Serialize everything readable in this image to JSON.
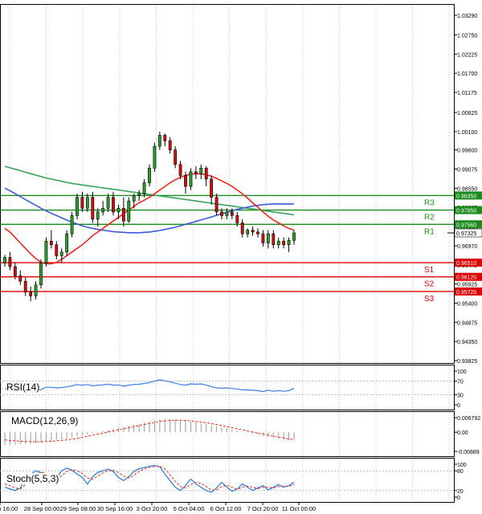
{
  "chart_data": {
    "type": "candlestick",
    "title": "",
    "price_axis_ticks": [
      "1.03290",
      "1.02750",
      "1.02225",
      "1.01700",
      "1.01175",
      "1.00625",
      "1.00100",
      "0.99600",
      "0.99075",
      "0.98550",
      "0.98025",
      "0.97495",
      "0.96970",
      "0.96445",
      "0.95925",
      "0.95400",
      "0.94875",
      "0.94350",
      "0.93825"
    ],
    "price_axis_values": [
      1.0329,
      1.0275,
      1.02225,
      1.017,
      1.01175,
      1.00625,
      1.001,
      0.996,
      0.99075,
      0.9855,
      0.98025,
      0.97495,
      0.9697,
      0.96445,
      0.95925,
      0.954,
      0.94875,
      0.9435,
      0.93825
    ],
    "current_price": "0.97325",
    "current_price_value": 0.97325,
    "levels": [
      {
        "name": "R3",
        "label": "R3",
        "value": 0.9835,
        "label_value": "0.98350",
        "color": "#1a8a1a"
      },
      {
        "name": "R2",
        "label": "R2",
        "value": 0.9795,
        "label_value": "0.97950",
        "color": "#1a8a1a"
      },
      {
        "name": "R1",
        "label": "R1",
        "value": 0.9756,
        "label_value": "0.97560",
        "color": "#1a8a1a"
      },
      {
        "name": "S1",
        "label": "S1",
        "value": 0.9651,
        "label_value": "0.96510",
        "color": "#dd0000"
      },
      {
        "name": "S2",
        "label": "S2",
        "value": 0.9612,
        "label_value": "0.96120",
        "color": "#dd0000"
      },
      {
        "name": "S3",
        "label": "S3",
        "value": 0.9572,
        "label_value": "0.95720",
        "color": "#dd0000"
      }
    ],
    "time_axis_labels": [
      "27 Sep 16:00",
      "28 Sep 00:00",
      "29 Sep 08:00",
      "30 Sep 16:00",
      "3 Oct 20:00",
      "5 Oct 04:00",
      "6 Oct 12:00",
      "7 Oct 20:00",
      "11 Oct 00:00"
    ],
    "candles": [
      [
        0.965,
        0.9672,
        0.964,
        0.9665
      ],
      [
        0.9665,
        0.968,
        0.963,
        0.964
      ],
      [
        0.964,
        0.965,
        0.9605,
        0.9615
      ],
      [
        0.9615,
        0.963,
        0.959,
        0.96
      ],
      [
        0.96,
        0.961,
        0.956,
        0.957
      ],
      [
        0.957,
        0.9585,
        0.9545,
        0.956
      ],
      [
        0.956,
        0.96,
        0.955,
        0.959
      ],
      [
        0.959,
        0.966,
        0.958,
        0.965
      ],
      [
        0.965,
        0.972,
        0.964,
        0.971
      ],
      [
        0.971,
        0.974,
        0.969,
        0.97
      ],
      [
        0.97,
        0.971,
        0.966,
        0.967
      ],
      [
        0.967,
        0.969,
        0.965,
        0.968
      ],
      [
        0.968,
        0.974,
        0.967,
        0.973
      ],
      [
        0.973,
        0.979,
        0.972,
        0.978
      ],
      [
        0.978,
        0.984,
        0.977,
        0.983
      ],
      [
        0.983,
        0.9845,
        0.979,
        0.98
      ],
      [
        0.98,
        0.984,
        0.979,
        0.983
      ],
      [
        0.983,
        0.9845,
        0.976,
        0.977
      ],
      [
        0.977,
        0.98,
        0.975,
        0.979
      ],
      [
        0.979,
        0.982,
        0.978,
        0.98
      ],
      [
        0.98,
        0.984,
        0.979,
        0.983
      ],
      [
        0.983,
        0.9845,
        0.978,
        0.979
      ],
      [
        0.979,
        0.981,
        0.977,
        0.98
      ],
      [
        0.98,
        0.983,
        0.975,
        0.9765
      ],
      [
        0.9765,
        0.983,
        0.976,
        0.982
      ],
      [
        0.982,
        0.984,
        0.98,
        0.9835
      ],
      [
        0.9835,
        0.985,
        0.982,
        0.984
      ],
      [
        0.984,
        0.988,
        0.983,
        0.987
      ],
      [
        0.987,
        0.992,
        0.986,
        0.991
      ],
      [
        0.991,
        0.998,
        0.99,
        0.997
      ],
      [
        0.997,
        1.001,
        0.996,
        1.0
      ],
      [
        1.0,
        1.0005,
        0.997,
        0.9985
      ],
      [
        0.9985,
        0.9995,
        0.995,
        0.996
      ],
      [
        0.996,
        0.997,
        0.991,
        0.992
      ],
      [
        0.992,
        0.993,
        0.988,
        0.989
      ],
      [
        0.989,
        0.99,
        0.984,
        0.986
      ],
      [
        0.986,
        0.991,
        0.985,
        0.99
      ],
      [
        0.99,
        0.9915,
        0.988,
        0.9895
      ],
      [
        0.9895,
        0.992,
        0.988,
        0.991
      ],
      [
        0.991,
        0.9915,
        0.986,
        0.988
      ],
      [
        0.988,
        0.989,
        0.981,
        0.983
      ],
      [
        0.983,
        0.984,
        0.978,
        0.979
      ],
      [
        0.979,
        0.98,
        0.977,
        0.978
      ],
      [
        0.978,
        0.98,
        0.977,
        0.979
      ],
      [
        0.979,
        0.98,
        0.977,
        0.978
      ],
      [
        0.978,
        0.979,
        0.975,
        0.976
      ],
      [
        0.976,
        0.977,
        0.972,
        0.973
      ],
      [
        0.973,
        0.9745,
        0.972,
        0.974
      ],
      [
        0.974,
        0.975,
        0.9725,
        0.9735
      ],
      [
        0.9735,
        0.9745,
        0.972,
        0.973
      ],
      [
        0.973,
        0.974,
        0.9695,
        0.9705
      ],
      [
        0.9705,
        0.974,
        0.969,
        0.973
      ],
      [
        0.973,
        0.974,
        0.969,
        0.97
      ],
      [
        0.97,
        0.972,
        0.969,
        0.971
      ],
      [
        0.971,
        0.972,
        0.969,
        0.97
      ],
      [
        0.97,
        0.972,
        0.968,
        0.9712
      ],
      [
        0.9712,
        0.974,
        0.97,
        0.97325
      ]
    ],
    "ma_red": [
      0.9745,
      0.9735,
      0.972,
      0.9705,
      0.969,
      0.9675,
      0.9662,
      0.9652,
      0.9648,
      0.9648,
      0.9652,
      0.966,
      0.967,
      0.968,
      0.969,
      0.97,
      0.9712,
      0.9725,
      0.9735,
      0.9745,
      0.9755,
      0.9765,
      0.9775,
      0.9785,
      0.9795,
      0.9805,
      0.9815,
      0.9822,
      0.983,
      0.984,
      0.985,
      0.986,
      0.987,
      0.9878,
      0.9885,
      0.989,
      0.9893,
      0.9895,
      0.9894,
      0.9892,
      0.9888,
      0.9882,
      0.9875,
      0.9868,
      0.986,
      0.985,
      0.984,
      0.9828,
      0.9815,
      0.9803,
      0.979,
      0.9778,
      0.9768,
      0.976,
      0.9752,
      0.9745,
      0.974
    ],
    "ma_blue": [
      0.9855,
      0.9848,
      0.984,
      0.9832,
      0.9824,
      0.9816,
      0.9808,
      0.98,
      0.9793,
      0.9786,
      0.978,
      0.9774,
      0.9768,
      0.9762,
      0.9757,
      0.9752,
      0.9748,
      0.9745,
      0.9742,
      0.974,
      0.9738,
      0.9736,
      0.9735,
      0.9734,
      0.9733,
      0.9733,
      0.9733,
      0.9734,
      0.9735,
      0.9737,
      0.9739,
      0.9742,
      0.9745,
      0.9748,
      0.9752,
      0.9756,
      0.976,
      0.9764,
      0.9768,
      0.9772,
      0.9776,
      0.9781,
      0.9785,
      0.9789,
      0.9793,
      0.9797,
      0.98,
      0.9803,
      0.9806,
      0.9808,
      0.981,
      0.9811,
      0.9812,
      0.9812,
      0.9812,
      0.9812,
      0.9812
    ],
    "ma_green": [
      0.9915,
      0.9911,
      0.9907,
      0.9903,
      0.9899,
      0.9895,
      0.9891,
      0.9887,
      0.9883,
      0.988,
      0.9877,
      0.9874,
      0.9871,
      0.9868,
      0.9866,
      0.9864,
      0.9862,
      0.986,
      0.9858,
      0.9856,
      0.9854,
      0.9852,
      0.985,
      0.9848,
      0.9846,
      0.9844,
      0.9842,
      0.984,
      0.9838,
      0.9836,
      0.9834,
      0.9832,
      0.983,
      0.9828,
      0.9826,
      0.9824,
      0.9822,
      0.982,
      0.9818,
      0.9816,
      0.9814,
      0.9812,
      0.981,
      0.9808,
      0.9806,
      0.9804,
      0.9802,
      0.98,
      0.9798,
      0.9796,
      0.9794,
      0.9792,
      0.979,
      0.9788,
      0.9786,
      0.9784,
      0.9782
    ],
    "rsi": {
      "label": "RSI(14)",
      "ticks": [
        "100",
        "70",
        "30",
        "0"
      ],
      "tick_values": [
        100,
        70,
        30,
        0
      ],
      "values": [
        48,
        46,
        44,
        42,
        40,
        39,
        41,
        45,
        52,
        52,
        50,
        51,
        53,
        56,
        60,
        58,
        60,
        56,
        58,
        59,
        61,
        58,
        59,
        55,
        58,
        60,
        61,
        63,
        66,
        70,
        74,
        71,
        68,
        64,
        60,
        58,
        62,
        61,
        62,
        58,
        54,
        50,
        49,
        50,
        48,
        47,
        44,
        44,
        43,
        42,
        39,
        43,
        40,
        42,
        40,
        42,
        49
      ]
    },
    "macd": {
      "label": "MACD(12,26,9)",
      "ticks": [
        "0.006792",
        "0.00",
        "-0.00889"
      ],
      "tick_values": [
        0.006792,
        0.0,
        -0.00889
      ],
      "hist": [
        -0.006,
        -0.0058,
        -0.0057,
        -0.0056,
        -0.0055,
        -0.0054,
        -0.0052,
        -0.0049,
        -0.0045,
        -0.0042,
        -0.0038,
        -0.0034,
        -0.003,
        -0.0025,
        -0.002,
        -0.0015,
        -0.001,
        -0.0005,
        0.0,
        0.0005,
        0.001,
        0.0015,
        0.002,
        0.0025,
        0.003,
        0.0035,
        0.004,
        0.0045,
        0.005,
        0.0055,
        0.006,
        0.0062,
        0.0062,
        0.006,
        0.0057,
        0.0054,
        0.005,
        0.0046,
        0.0042,
        0.0038,
        0.0033,
        0.0028,
        0.0023,
        0.0018,
        0.0013,
        0.0008,
        0.0003,
        -0.0002,
        -0.0007,
        -0.0012,
        -0.0017,
        -0.0022,
        -0.0026,
        -0.003,
        -0.0033,
        -0.0036,
        -0.0038
      ],
      "signal": [
        -0.0035,
        -0.0038,
        -0.004,
        -0.0042,
        -0.0043,
        -0.0044,
        -0.0044,
        -0.0044,
        -0.0043,
        -0.0042,
        -0.004,
        -0.0038,
        -0.0035,
        -0.0032,
        -0.0028,
        -0.0024,
        -0.0019,
        -0.0014,
        -0.0009,
        -0.0004,
        0.0001,
        0.0006,
        0.0011,
        0.0016,
        0.0021,
        0.0026,
        0.0031,
        0.0036,
        0.0041,
        0.0046,
        0.005,
        0.0053,
        0.0055,
        0.0056,
        0.0056,
        0.0055,
        0.0053,
        0.005,
        0.0047,
        0.0044,
        0.004,
        0.0036,
        0.0031,
        0.0026,
        0.0021,
        0.0016,
        0.0011,
        0.0006,
        0.0001,
        -0.0004,
        -0.0009,
        -0.0014,
        -0.0019,
        -0.0023,
        -0.0027,
        -0.0031,
        -0.0035
      ]
    },
    "stoch": {
      "label": "Stoch(5,5,3)",
      "ticks": [
        "100",
        "80",
        "20",
        "0"
      ],
      "tick_values": [
        100,
        80,
        20,
        0
      ],
      "main": [
        30,
        25,
        20,
        28,
        55,
        70,
        80,
        75,
        60,
        45,
        58,
        80,
        88,
        82,
        70,
        60,
        40,
        62,
        75,
        80,
        85,
        78,
        60,
        50,
        62,
        78,
        86,
        90,
        94,
        96,
        92,
        70,
        50,
        30,
        20,
        35,
        55,
        40,
        30,
        20,
        15,
        28,
        45,
        30,
        18,
        25,
        40,
        30,
        20,
        28,
        35,
        22,
        30,
        38,
        30,
        35,
        45
      ],
      "signal": [
        40,
        35,
        28,
        25,
        38,
        55,
        68,
        76,
        72,
        62,
        55,
        65,
        78,
        84,
        80,
        72,
        58,
        55,
        64,
        74,
        80,
        82,
        75,
        64,
        58,
        66,
        78,
        86,
        90,
        93,
        94,
        85,
        68,
        48,
        32,
        28,
        38,
        45,
        42,
        32,
        22,
        22,
        32,
        36,
        30,
        24,
        30,
        34,
        30,
        26,
        30,
        30,
        28,
        32,
        34,
        33,
        38
      ]
    }
  }
}
